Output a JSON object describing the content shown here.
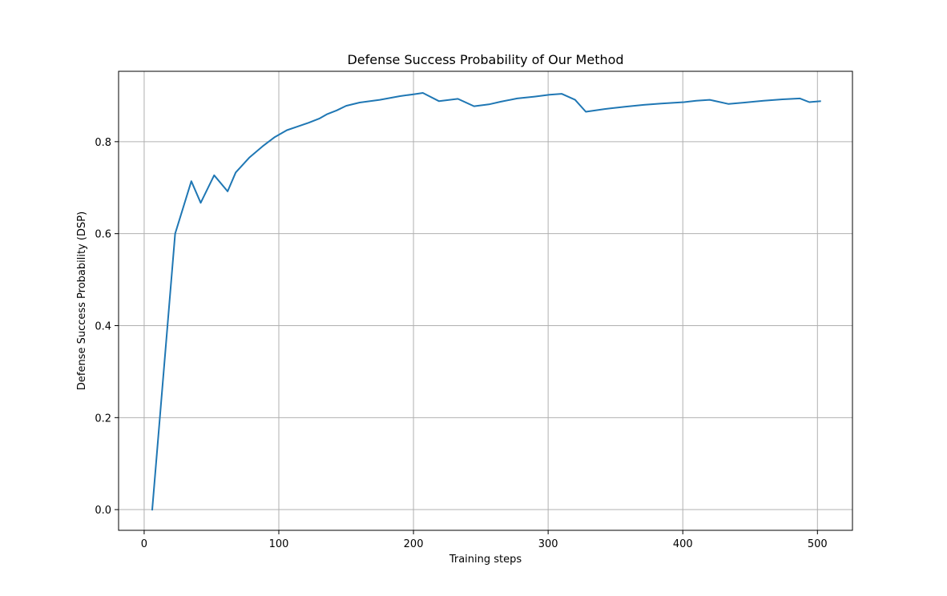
{
  "chart_data": {
    "type": "line",
    "title": "Defense Success Probability of Our Method",
    "xlabel": "Training steps",
    "ylabel": "Defense Success Probability (DSP)",
    "xlim": [
      -19,
      526
    ],
    "ylim": [
      -0.045,
      0.953
    ],
    "xticks": [
      0,
      100,
      200,
      300,
      400,
      500
    ],
    "xtick_labels": [
      "0",
      "100",
      "200",
      "300",
      "400",
      "500"
    ],
    "yticks": [
      0.0,
      0.2,
      0.4,
      0.6,
      0.8
    ],
    "ytick_labels": [
      "0.0",
      "0.2",
      "0.4",
      "0.6",
      "0.8"
    ],
    "grid": true,
    "series": [
      {
        "color": "#1f77b4",
        "x": [
          6,
          23,
          35,
          42,
          52,
          62,
          68,
          78,
          88,
          97,
          106,
          114,
          122,
          130,
          136,
          143,
          150,
          160,
          175,
          190,
          200,
          207,
          219,
          233,
          245,
          256,
          265,
          277,
          290,
          301,
          310,
          320,
          328,
          342,
          357,
          371,
          384,
          401,
          410,
          420,
          434,
          446,
          460,
          474,
          487,
          494,
          502
        ],
        "y": [
          0.0,
          0.6,
          0.714,
          0.667,
          0.727,
          0.692,
          0.733,
          0.765,
          0.79,
          0.81,
          0.825,
          0.833,
          0.841,
          0.85,
          0.86,
          0.868,
          0.878,
          0.885,
          0.891,
          0.899,
          0.903,
          0.906,
          0.888,
          0.893,
          0.877,
          0.881,
          0.887,
          0.894,
          0.898,
          0.902,
          0.904,
          0.891,
          0.865,
          0.871,
          0.876,
          0.88,
          0.883,
          0.886,
          0.889,
          0.891,
          0.882,
          0.885,
          0.889,
          0.892,
          0.894,
          0.886,
          0.888
        ]
      }
    ]
  }
}
